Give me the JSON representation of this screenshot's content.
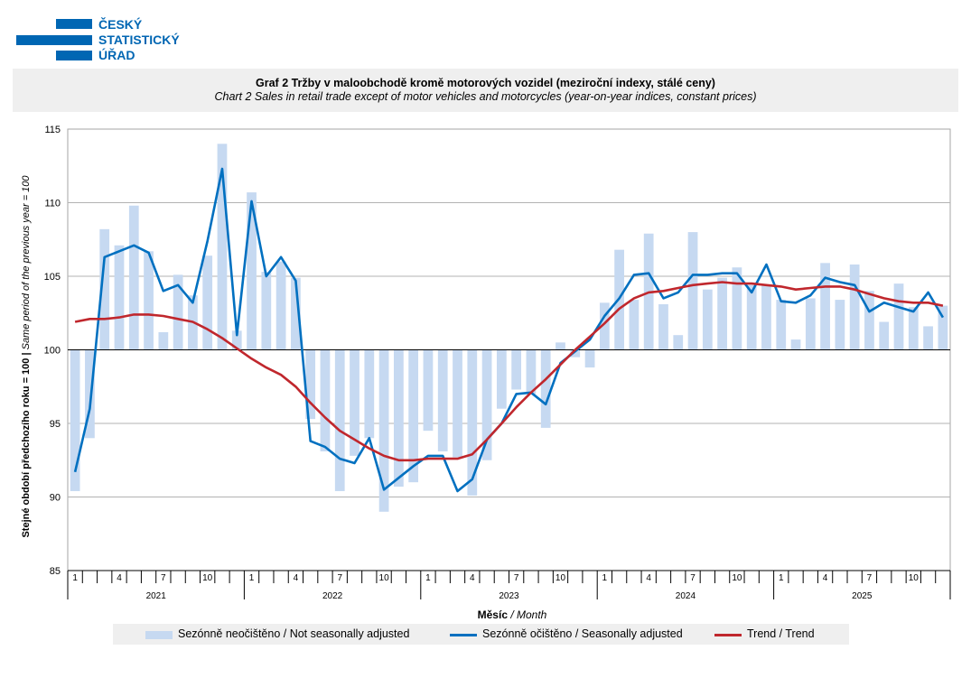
{
  "logo": {
    "lines": [
      "ČESKÝ",
      "STATISTICKÝ",
      "ÚŘAD"
    ],
    "color": "#0066b3"
  },
  "header": {
    "title_cz": "Graf 2 Tržby v maloobchodě kromě motorových  vozidel (meziroční indexy, stálé ceny)",
    "title_en": "Chart  2 Sales in retail trade except of motor vehicles and motorcycles (year-on-year  indices, constant prices)"
  },
  "chart_data": {
    "type": "bar+line",
    "ylabel_cz": "Stejné období předchozího roku = 100 |",
    "ylabel_en": " Same period of the previous year = 100",
    "xlabel_cz": "Měsíc",
    "xlabel_en": " / Month",
    "ylim": [
      85,
      115
    ],
    "yticks": [
      "85",
      "90",
      "95",
      "100",
      "105",
      "110",
      "115"
    ],
    "baseline": 100,
    "years": [
      "2021",
      "2022",
      "2023",
      "2024",
      "2025"
    ],
    "month_tick_labels": [
      "1",
      "4",
      "7",
      "10"
    ],
    "months_count": 60,
    "series": [
      {
        "name": "Sezónně neočištěno / Not seasonally adjusted",
        "kind": "bar",
        "color": "#c6d9f1",
        "values": [
          90.4,
          94.0,
          108.2,
          107.1,
          109.8,
          106.7,
          101.2,
          105.1,
          103.7,
          106.4,
          114.0,
          101.3,
          110.7,
          105.3,
          106.0,
          104.9,
          95.3,
          93.1,
          90.4,
          92.8,
          94.0,
          89.0,
          90.7,
          91.0,
          94.5,
          93.1,
          92.7,
          90.1,
          92.5,
          96.0,
          97.3,
          97.0,
          94.7,
          100.5,
          99.5,
          98.8,
          103.2,
          106.8,
          103.4,
          107.9,
          103.1,
          101.0,
          108.0,
          104.1,
          104.9,
          105.6,
          104.4,
          104.4,
          103.4,
          100.7,
          103.5,
          105.9,
          103.4,
          105.8,
          104.0,
          101.9,
          104.5,
          102.9,
          101.6,
          103.0
        ]
      },
      {
        "name": "Sezónně očištěno / Seasonally adjusted",
        "kind": "line",
        "color": "#0070c0",
        "values": [
          91.7,
          96.0,
          106.3,
          106.7,
          107.1,
          106.6,
          104.0,
          104.4,
          103.2,
          107.4,
          112.3,
          101.0,
          110.1,
          105.0,
          106.3,
          104.7,
          93.8,
          93.4,
          92.6,
          92.3,
          94.0,
          90.5,
          91.3,
          92.1,
          92.8,
          92.8,
          90.4,
          91.2,
          93.9,
          95.0,
          97.0,
          97.1,
          96.3,
          99.1,
          99.9,
          100.7,
          102.3,
          103.5,
          105.1,
          105.2,
          103.5,
          103.9,
          105.1,
          105.1,
          105.2,
          105.2,
          103.9,
          105.8,
          103.3,
          103.2,
          103.7,
          104.9,
          104.6,
          104.4,
          102.6,
          103.2,
          102.9,
          102.6,
          103.9,
          102.2
        ]
      },
      {
        "name": "Trend / Trend",
        "kind": "line",
        "color": "#c0272d",
        "values": [
          101.9,
          102.1,
          102.1,
          102.2,
          102.4,
          102.4,
          102.3,
          102.1,
          101.9,
          101.4,
          100.8,
          100.1,
          99.4,
          98.8,
          98.3,
          97.5,
          96.4,
          95.4,
          94.5,
          93.9,
          93.3,
          92.8,
          92.5,
          92.5,
          92.6,
          92.6,
          92.6,
          92.9,
          93.9,
          95.0,
          96.1,
          97.1,
          98.0,
          99.0,
          100.0,
          100.9,
          101.8,
          102.8,
          103.5,
          103.9,
          104.0,
          104.2,
          104.4,
          104.5,
          104.6,
          104.5,
          104.5,
          104.4,
          104.3,
          104.1,
          104.2,
          104.3,
          104.3,
          104.1,
          103.8,
          103.5,
          103.3,
          103.2,
          103.2,
          103.0
        ]
      }
    ],
    "legend_position": "bottom",
    "grid": true
  }
}
